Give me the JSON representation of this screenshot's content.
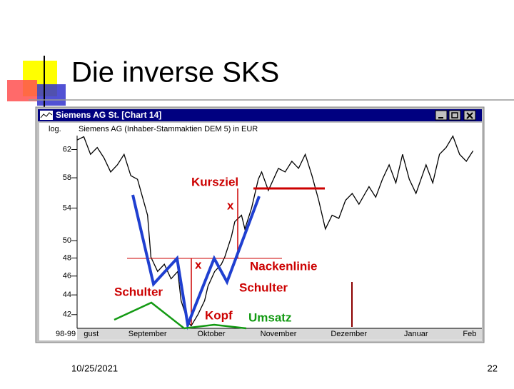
{
  "slide": {
    "title": "Die inverse SKS",
    "date": "10/25/2021",
    "page": "22"
  },
  "window": {
    "title": "Siemens AG St. [Chart 14]"
  },
  "chart_data": {
    "type": "line",
    "title": "Siemens AG (Inhaber-Stammaktien DEM 5) in EUR",
    "log_label": "log.",
    "log_scale": true,
    "xlabel": "98-99",
    "x": [
      0,
      2,
      4,
      6,
      8,
      10,
      12,
      14,
      16,
      18,
      21,
      22,
      24,
      26,
      28,
      30,
      31,
      33,
      34,
      36,
      38,
      39,
      41,
      43,
      44,
      46,
      47,
      49,
      50,
      52,
      54,
      55,
      57,
      60,
      62,
      64,
      66,
      68,
      70,
      72,
      74,
      76,
      78,
      80,
      82,
      84,
      87,
      89,
      91,
      93,
      95,
      97,
      99,
      101,
      104,
      106,
      108,
      110,
      112,
      114,
      116,
      118
    ],
    "series": [
      {
        "color": "#000000",
        "values": [
          63.4,
          63.9,
          61.3,
          62.3,
          60.8,
          58.8,
          59.8,
          61.3,
          58.3,
          57.8,
          53.1,
          48.1,
          46.5,
          47.3,
          45.7,
          46.5,
          43.4,
          41.3,
          40.9,
          42.0,
          43.4,
          44.9,
          46.5,
          47.3,
          48.1,
          50.5,
          52.3,
          53.1,
          51.4,
          54.0,
          57.8,
          58.8,
          56.3,
          59.3,
          58.8,
          60.3,
          59.3,
          61.3,
          58.3,
          55.0,
          51.4,
          53.1,
          52.7,
          55.0,
          55.9,
          54.5,
          56.8,
          55.4,
          57.8,
          59.8,
          57.3,
          61.3,
          57.8,
          55.9,
          59.8,
          57.3,
          61.3,
          62.3,
          64.0,
          61.3,
          60.3,
          61.8
        ]
      }
    ],
    "xlim": [
      0,
      120
    ],
    "ylim": [
      40.8,
      64.5
    ],
    "yticks": [
      42,
      44,
      46,
      48,
      50,
      54,
      58,
      62
    ],
    "xticks": [
      {
        "value": 2,
        "label": "gust"
      },
      {
        "value": 21,
        "label": "September"
      },
      {
        "value": 40,
        "label": "Oktober"
      },
      {
        "value": 60,
        "label": "November"
      },
      {
        "value": 81,
        "label": "Dezember"
      },
      {
        "value": 101,
        "label": "Januar"
      },
      {
        "value": 117,
        "label": "Feb"
      }
    ],
    "annotations": [
      "Kursziel",
      "x",
      "x",
      "Nackenlinie",
      "Schulter",
      "Schulter",
      "Kopf",
      "Umsatz"
    ]
  }
}
